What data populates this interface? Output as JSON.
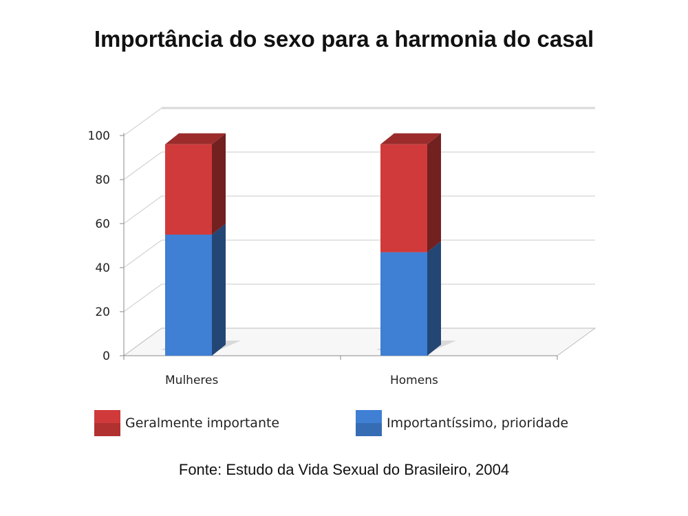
{
  "chart_data": {
    "type": "bar",
    "stacked": true,
    "three_d": true,
    "title": "Importância do sexo para a harmonia do casal",
    "categories": [
      "Mulheres",
      "Homens"
    ],
    "series": [
      {
        "name": "Importantíssimo, prioridade",
        "values": [
          55,
          47
        ],
        "color": "#3f7fd4"
      },
      {
        "name": "Geralmente importante",
        "values": [
          41,
          49
        ],
        "color": "#d03a3a"
      }
    ],
    "yticks": [
      0,
      20,
      40,
      60,
      80,
      100
    ],
    "ylim": [
      0,
      100
    ],
    "grid": true,
    "legend_position": "bottom",
    "legend_order": [
      1,
      0
    ],
    "source": "Fonte: Estudo da Vida Sexual do Brasileiro, 2004"
  }
}
